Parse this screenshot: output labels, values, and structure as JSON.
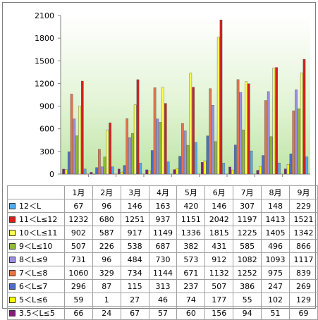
{
  "chart_data": {
    "type": "bar",
    "categories": [
      "1月",
      "2月",
      "3月",
      "4月",
      "5月",
      "6月",
      "7月",
      "8月",
      "9月"
    ],
    "ylim": [
      0,
      2100
    ],
    "yticks": [
      0,
      300,
      600,
      900,
      1200,
      1500,
      1800,
      2100
    ],
    "grid": false,
    "legend": "table-below",
    "series": [
      {
        "name": "3.5＜L≤5",
        "color": "#7f1f7f",
        "values": [
          66,
          24,
          67,
          57,
          60,
          156,
          94,
          51,
          69
        ]
      },
      {
        "name": "5＜L≤6",
        "color": "#ffff00",
        "values": [
          59,
          1,
          27,
          46,
          74,
          177,
          55,
          102,
          129
        ]
      },
      {
        "name": "6＜L≤7",
        "color": "#4a6fc9",
        "values": [
          296,
          87,
          115,
          313,
          237,
          507,
          386,
          247,
          269
        ]
      },
      {
        "name": "7＜L≤8",
        "color": "#e8724c",
        "values": [
          1060,
          329,
          734,
          1144,
          671,
          1132,
          1252,
          975,
          839
        ]
      },
      {
        "name": "8＜L≤9",
        "color": "#9c8fe0",
        "values": [
          731,
          96,
          484,
          730,
          573,
          912,
          1082,
          1093,
          1117
        ]
      },
      {
        "name": "9＜L≤10",
        "color": "#8dbb3a",
        "values": [
          507,
          226,
          538,
          687,
          382,
          431,
          585,
          496,
          866
        ]
      },
      {
        "name": "10＜L≤11",
        "color": "#ffff55",
        "values": [
          902,
          587,
          917,
          1149,
          1336,
          1815,
          1225,
          1405,
          1342
        ]
      },
      {
        "name": "11＜L≤12",
        "color": "#d42020",
        "values": [
          1232,
          680,
          1251,
          937,
          1151,
          2042,
          1197,
          1413,
          1521
        ]
      },
      {
        "name": "12＜L",
        "color": "#55aaee",
        "values": [
          67,
          96,
          146,
          163,
          420,
          146,
          307,
          148,
          229
        ]
      }
    ],
    "table_row_order": [
      "12＜L",
      "11＜L≤12",
      "10＜L≤11",
      "9＜L≤10",
      "8＜L≤9",
      "7＜L≤8",
      "6＜L≤7",
      "5＜L≤6",
      "3.5＜L≤5"
    ]
  }
}
